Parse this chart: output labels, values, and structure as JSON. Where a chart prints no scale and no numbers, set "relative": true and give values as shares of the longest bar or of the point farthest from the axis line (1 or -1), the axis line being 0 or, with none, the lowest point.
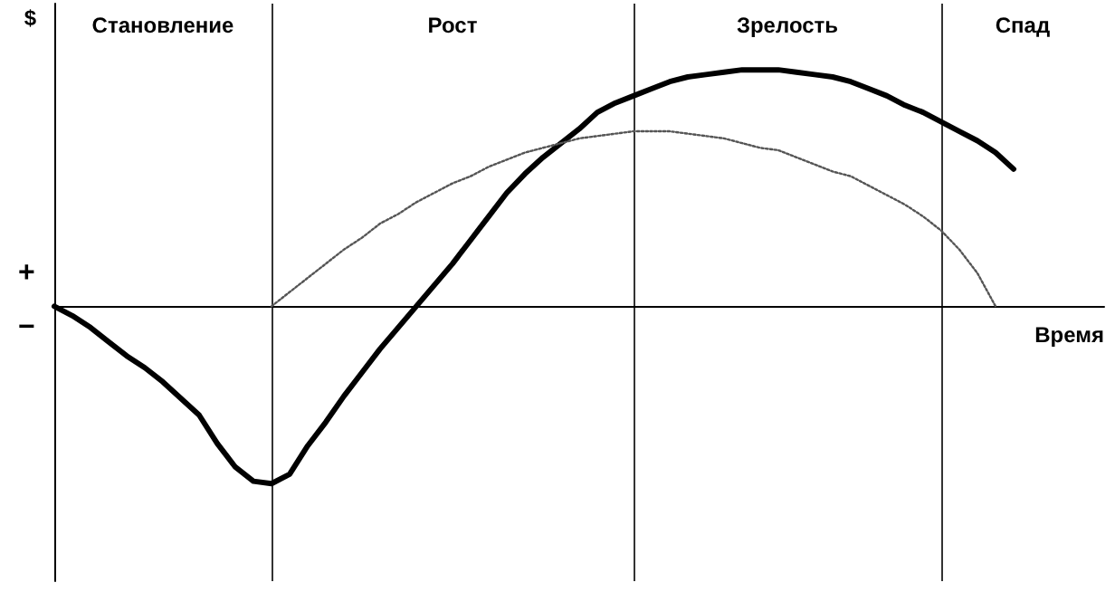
{
  "chart_data": {
    "type": "line",
    "relative": true,
    "ylabel": "$",
    "xlabel": "Время",
    "annotations": [
      "Становление",
      "Рост",
      "Зрелость",
      "Спад",
      "+",
      "−"
    ],
    "categories": [
      null,
      null,
      null,
      null,
      null,
      null,
      null,
      null,
      null,
      null,
      null,
      null,
      null,
      null,
      null,
      null,
      null,
      null,
      null,
      null,
      null,
      null,
      null,
      null,
      null,
      null,
      null,
      null,
      null,
      null,
      null,
      null,
      null,
      null,
      null,
      null,
      null,
      null,
      null,
      null,
      null,
      null,
      null,
      null,
      null,
      null,
      null,
      null,
      null,
      null,
      null,
      null,
      null,
      null,
      null,
      null,
      null,
      null,
      null
    ],
    "tick_labels": false,
    "grid": "x",
    "marker": "none",
    "series": [
      {
        "color": "#000000",
        "line_style": "solid",
        "values": [
          0,
          -0.04,
          -0.09,
          -0.15,
          -0.21,
          -0.26,
          -0.32,
          -0.39,
          -0.46,
          -0.58,
          -0.68,
          -0.74,
          -0.75,
          -0.71,
          -0.59,
          -0.49,
          -0.38,
          -0.28,
          -0.18,
          -0.09,
          0,
          0.09,
          0.18,
          0.28,
          0.38,
          0.48,
          0.56,
          0.63,
          0.69,
          0.75,
          0.82,
          0.86,
          0.89,
          0.92,
          0.95,
          0.97,
          0.98,
          0.99,
          1.0,
          1.0,
          1.0,
          0.99,
          0.98,
          0.97,
          0.95,
          0.92,
          0.89,
          0.85,
          0.82,
          0.78,
          0.74,
          0.7,
          0.65,
          0.58,
          null,
          null,
          null,
          null,
          null
        ]
      },
      {
        "color": "#555555",
        "line_style": "dotted",
        "values": [
          null,
          null,
          null,
          null,
          null,
          null,
          null,
          null,
          null,
          null,
          null,
          null,
          0,
          0.06,
          0.12,
          0.18,
          0.24,
          0.29,
          0.35,
          0.39,
          0.44,
          0.48,
          0.52,
          0.55,
          0.59,
          0.62,
          0.65,
          0.67,
          0.69,
          0.71,
          0.72,
          0.73,
          0.74,
          0.74,
          0.74,
          0.73,
          0.72,
          0.71,
          0.69,
          0.67,
          0.66,
          0.63,
          0.6,
          0.57,
          0.55,
          0.51,
          0.47,
          0.43,
          0.38,
          0.32,
          0.24,
          0.14,
          0,
          null,
          null,
          null,
          null,
          null,
          null
        ]
      }
    ]
  }
}
